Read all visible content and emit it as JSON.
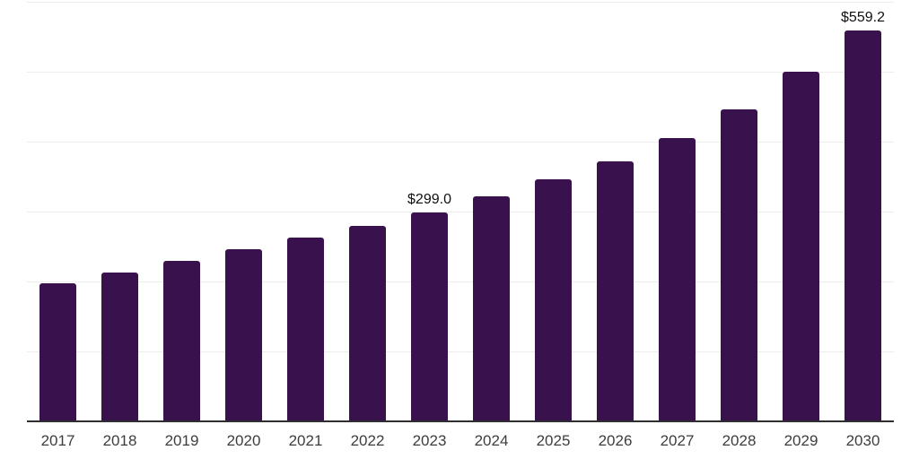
{
  "chart_data": {
    "type": "bar",
    "title": "",
    "xlabel": "",
    "ylabel": "",
    "categories": [
      "2017",
      "2018",
      "2019",
      "2020",
      "2021",
      "2022",
      "2023",
      "2024",
      "2025",
      "2026",
      "2027",
      "2028",
      "2029",
      "2030"
    ],
    "values": [
      197.4,
      212.8,
      229.5,
      246.2,
      262.8,
      279.5,
      299.0,
      321.2,
      346.2,
      372.4,
      404.7,
      446.5,
      500.0,
      559.2
    ],
    "data_labels": [
      {
        "category": "2023",
        "text": "$299.0"
      },
      {
        "category": "2030",
        "text": "$559.2"
      }
    ],
    "ylim": [
      0,
      600
    ],
    "grid_interval": 100,
    "grid": true,
    "legend": false,
    "y_axis_tick_labels_visible": false,
    "colors": {
      "bar": "#38114D",
      "gridline": "#EDEDED",
      "axis": "#2E2E2E",
      "x_tick_label": "#3D3D3D",
      "data_label": "#101010",
      "background": "#FFFFFF"
    }
  }
}
